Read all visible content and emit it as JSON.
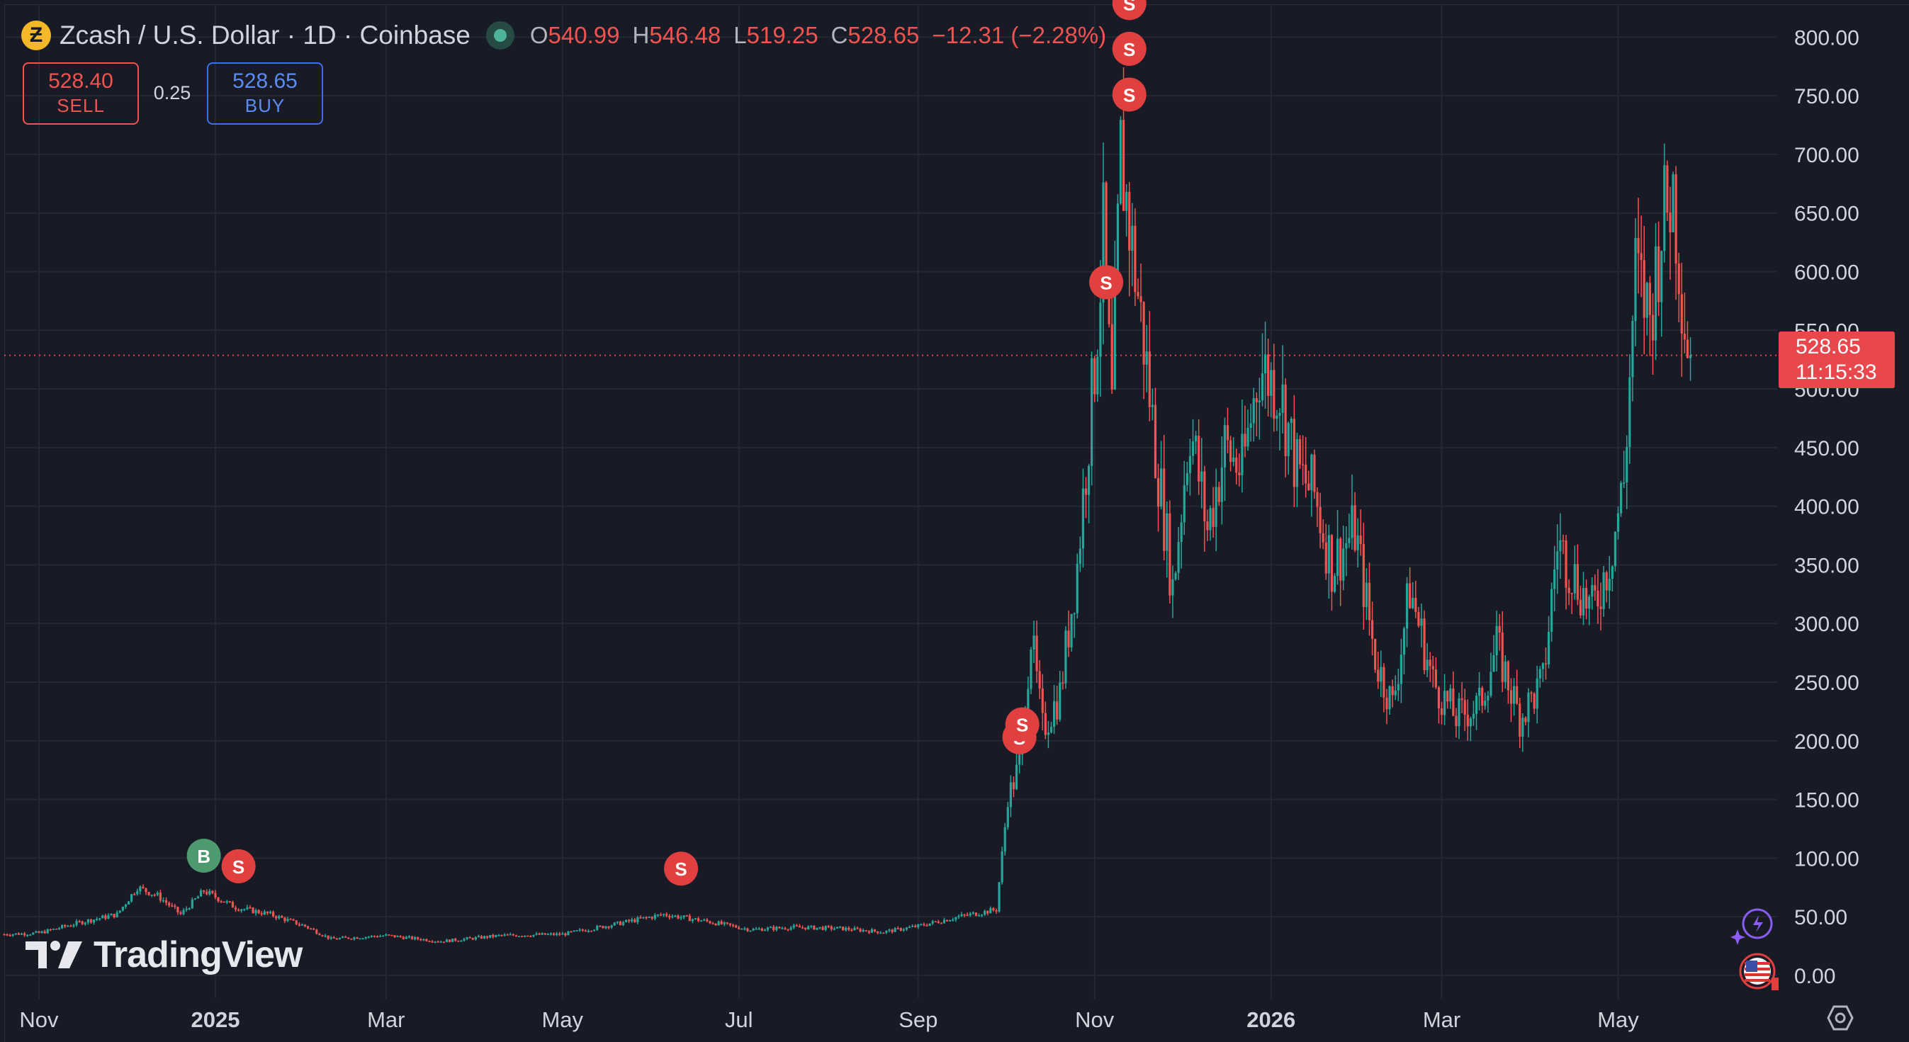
{
  "header": {
    "symbol_title": "Zcash / U.S. Dollar · 1D · Coinbase",
    "coin_glyph": "Ƶ",
    "ohlc": {
      "o_label": "O",
      "o_value": "540.99",
      "h_label": "H",
      "h_value": "546.48",
      "l_label": "L",
      "l_value": "519.25",
      "c_label": "C",
      "c_value": "528.65",
      "change": "−12.31 (−2.28%)"
    },
    "down_color": "#f05350",
    "up_color": "#26a69a"
  },
  "trade": {
    "sell_price": "528.40",
    "sell_label": "SELL",
    "spread": "0.25",
    "buy_price": "528.65",
    "buy_label": "BUY"
  },
  "price_tag": {
    "price": "528.65",
    "countdown": "11:15:33",
    "color": "#e8484b"
  },
  "watermark": {
    "text": "TradingView"
  },
  "icons": [
    "coin-logo-icon",
    "status-dot-icon",
    "tradingview-logo-icon",
    "settings-icon",
    "assistant-spark-icon",
    "flag-icon"
  ],
  "chart_data": {
    "type": "candlestick",
    "title": "Zcash / U.S. Dollar · 1D · Coinbase",
    "ylim": [
      -20,
      828
    ],
    "y_ticks": [
      "0.00",
      "50.00",
      "100.00",
      "150.00",
      "200.00",
      "250.00",
      "300.00",
      "350.00",
      "400.00",
      "450.00",
      "500.00",
      "550.00",
      "600.00",
      "650.00",
      "700.00",
      "750.00",
      "800.00"
    ],
    "x_ticks": [
      {
        "label": "Nov",
        "date": "2024-11-01",
        "bold": false
      },
      {
        "label": "2025",
        "date": "2025-01-01",
        "bold": true
      },
      {
        "label": "Mar",
        "date": "2025-03-01",
        "bold": false
      },
      {
        "label": "May",
        "date": "2025-05-01",
        "bold": false
      },
      {
        "label": "Jul",
        "date": "2025-07-01",
        "bold": false
      },
      {
        "label": "Sep",
        "date": "2025-09-01",
        "bold": false
      },
      {
        "label": "Nov",
        "date": "2025-11-01",
        "bold": false
      },
      {
        "label": "2026",
        "date": "2026-01-01",
        "bold": true
      },
      {
        "label": "Mar",
        "date": "2026-03-01",
        "bold": false
      },
      {
        "label": "May",
        "date": "2026-05-01",
        "bold": false
      }
    ],
    "x_range": [
      "2024-10-20",
      "2026-06-25"
    ],
    "first_date": "2024-10-20",
    "last_date": "2026-05-26",
    "last_price": 528.65,
    "close_anchors": [
      [
        "2024-10-20",
        35
      ],
      [
        "2024-11-01",
        36
      ],
      [
        "2024-11-15",
        45
      ],
      [
        "2024-11-28",
        52
      ],
      [
        "2024-12-05",
        75
      ],
      [
        "2024-12-12",
        68
      ],
      [
        "2024-12-20",
        52
      ],
      [
        "2024-12-28",
        72
      ],
      [
        "2025-01-08",
        58
      ],
      [
        "2025-01-20",
        52
      ],
      [
        "2025-02-01",
        42
      ],
      [
        "2025-02-10",
        31
      ],
      [
        "2025-03-01",
        34
      ],
      [
        "2025-03-20",
        29
      ],
      [
        "2025-04-10",
        34
      ],
      [
        "2025-05-01",
        35
      ],
      [
        "2025-05-20",
        44
      ],
      [
        "2025-06-05",
        52
      ],
      [
        "2025-06-20",
        46
      ],
      [
        "2025-07-05",
        39
      ],
      [
        "2025-07-20",
        41
      ],
      [
        "2025-08-05",
        40
      ],
      [
        "2025-08-20",
        37
      ],
      [
        "2025-09-01",
        42
      ],
      [
        "2025-09-15",
        50
      ],
      [
        "2025-09-28",
        56
      ],
      [
        "2025-10-02",
        150
      ],
      [
        "2025-10-06",
        180
      ],
      [
        "2025-10-10",
        290
      ],
      [
        "2025-10-14",
        210
      ],
      [
        "2025-10-20",
        240
      ],
      [
        "2025-10-26",
        350
      ],
      [
        "2025-11-01",
        520
      ],
      [
        "2025-11-04",
        630
      ],
      [
        "2025-11-07",
        480
      ],
      [
        "2025-11-10",
        700
      ],
      [
        "2025-11-14",
        620
      ],
      [
        "2025-11-18",
        540
      ],
      [
        "2025-11-22",
        450
      ],
      [
        "2025-11-28",
        330
      ],
      [
        "2025-12-04",
        470
      ],
      [
        "2025-12-10",
        380
      ],
      [
        "2025-12-16",
        450
      ],
      [
        "2025-12-22",
        430
      ],
      [
        "2025-12-28",
        520
      ],
      [
        "2026-01-04",
        500
      ],
      [
        "2026-01-10",
        430
      ],
      [
        "2026-01-16",
        410
      ],
      [
        "2026-01-22",
        350
      ],
      [
        "2026-01-30",
        380
      ],
      [
        "2026-02-06",
        270
      ],
      [
        "2026-02-12",
        230
      ],
      [
        "2026-02-18",
        330
      ],
      [
        "2026-02-26",
        250
      ],
      [
        "2026-03-06",
        220
      ],
      [
        "2026-03-14",
        230
      ],
      [
        "2026-03-20",
        280
      ],
      [
        "2026-03-28",
        220
      ],
      [
        "2026-04-05",
        250
      ],
      [
        "2026-04-10",
        370
      ],
      [
        "2026-04-16",
        340
      ],
      [
        "2026-04-22",
        310
      ],
      [
        "2026-04-28",
        355
      ],
      [
        "2026-05-03",
        420
      ],
      [
        "2026-05-07",
        600
      ],
      [
        "2026-05-12",
        560
      ],
      [
        "2026-05-16",
        640
      ],
      [
        "2026-05-20",
        670
      ],
      [
        "2026-05-24",
        560
      ],
      [
        "2026-05-26",
        528.65
      ]
    ],
    "markers": [
      {
        "type": "B",
        "date": "2024-12-28",
        "price": 102,
        "color": "#4c9a6e"
      },
      {
        "type": "S",
        "date": "2025-01-09",
        "price": 93,
        "color": "#e0403f"
      },
      {
        "type": "S",
        "date": "2025-06-11",
        "price": 91,
        "color": "#e0403f"
      },
      {
        "type": "S",
        "date": "2025-10-06",
        "price": 203,
        "color": "#e0403f"
      },
      {
        "type": "S",
        "date": "2025-10-07",
        "price": 214,
        "color": "#e0403f"
      },
      {
        "type": "S",
        "date": "2025-11-05",
        "price": 591,
        "color": "#e0403f"
      },
      {
        "type": "S",
        "date": "2025-11-13",
        "price": 751,
        "color": "#e0403f"
      },
      {
        "type": "S",
        "date": "2025-11-13",
        "price": 790,
        "color": "#e0403f"
      },
      {
        "type": "S",
        "date": "2025-11-13",
        "price": 829,
        "color": "#e0403f"
      }
    ]
  }
}
